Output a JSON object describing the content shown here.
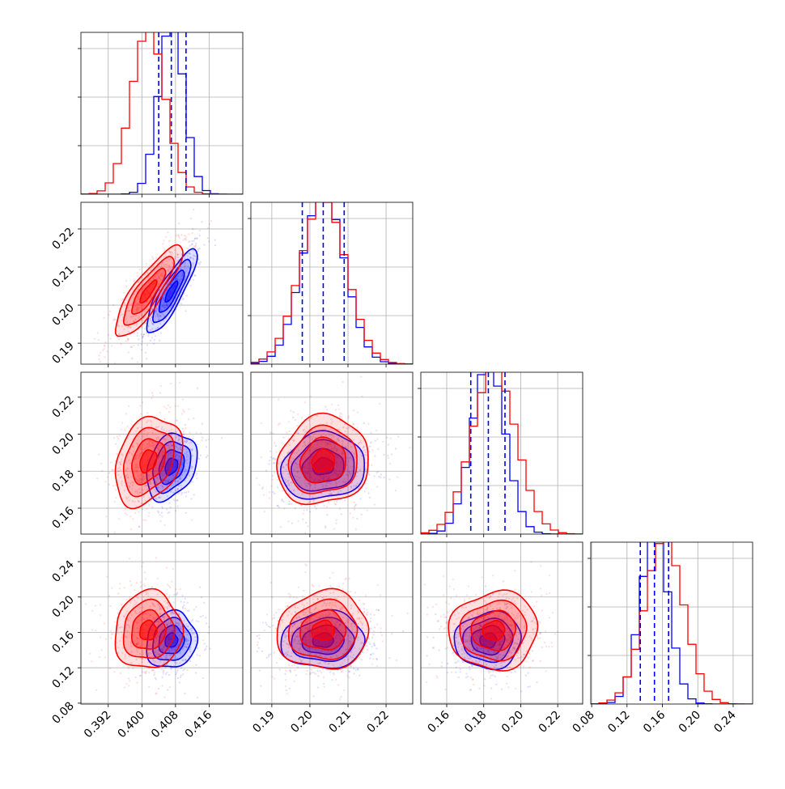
{
  "chart_data": {
    "type": "corner",
    "title": "",
    "grid": true,
    "colors": {
      "blue": "#0000ff",
      "red": "#ff0000"
    },
    "series": [
      {
        "color": "blue",
        "params": [
          {
            "center": 0.407,
            "sd": 0.003,
            "q": [
              0.404,
              0.407,
              0.4105
            ]
          },
          {
            "center": 0.2035,
            "sd": 0.0055,
            "q": [
              0.198,
              0.2035,
              0.209
            ]
          },
          {
            "center": 0.1825,
            "sd": 0.009,
            "q": [
              0.173,
              0.1825,
              0.1915
            ]
          },
          {
            "center": 0.151,
            "sd": 0.016,
            "q": [
              0.135,
              0.151,
              0.167
            ]
          }
        ]
      },
      {
        "color": "red",
        "params": [
          {
            "center": 0.4015,
            "sd": 0.004
          },
          {
            "center": 0.2035,
            "sd": 0.006
          },
          {
            "center": 0.1855,
            "sd": 0.012
          },
          {
            "center": 0.162,
            "sd": 0.022
          }
        ]
      }
    ],
    "correlations": {
      "1-0": {
        "blue": 0.85,
        "red": 0.85
      },
      "2-0": {
        "blue": 0.3,
        "red": 0.3
      },
      "3-0": {
        "blue": 0.1,
        "red": 0.05
      },
      "2-1": {
        "blue": 0.1,
        "red": 0.1
      },
      "3-1": {
        "blue": 0.05,
        "red": 0.05
      },
      "3-2": {
        "blue": 0.05,
        "red": 0.05
      }
    },
    "axes": [
      {
        "range": [
          0.3855,
          0.424
        ],
        "ticks": [
          "0.392",
          "0.400",
          "0.408",
          "0.416"
        ],
        "tick_values": [
          0.392,
          0.4,
          0.408,
          0.416
        ]
      },
      {
        "range": [
          0.1845,
          0.227
        ],
        "ticks": [
          "0.19",
          "0.20",
          "0.21",
          "0.22"
        ],
        "tick_values": [
          0.19,
          0.2,
          0.21,
          0.22
        ]
      },
      {
        "range": [
          0.146,
          0.2335
        ],
        "ticks": [
          "0.16",
          "0.18",
          "0.20",
          "0.22"
        ],
        "tick_values": [
          0.16,
          0.18,
          0.2,
          0.22
        ]
      },
      {
        "range": [
          0.079,
          0.262
        ],
        "ticks": [
          "0.08",
          "0.12",
          "0.16",
          "0.20",
          "0.24"
        ],
        "tick_values": [
          0.08,
          0.12,
          0.16,
          0.2,
          0.24
        ]
      }
    ]
  }
}
